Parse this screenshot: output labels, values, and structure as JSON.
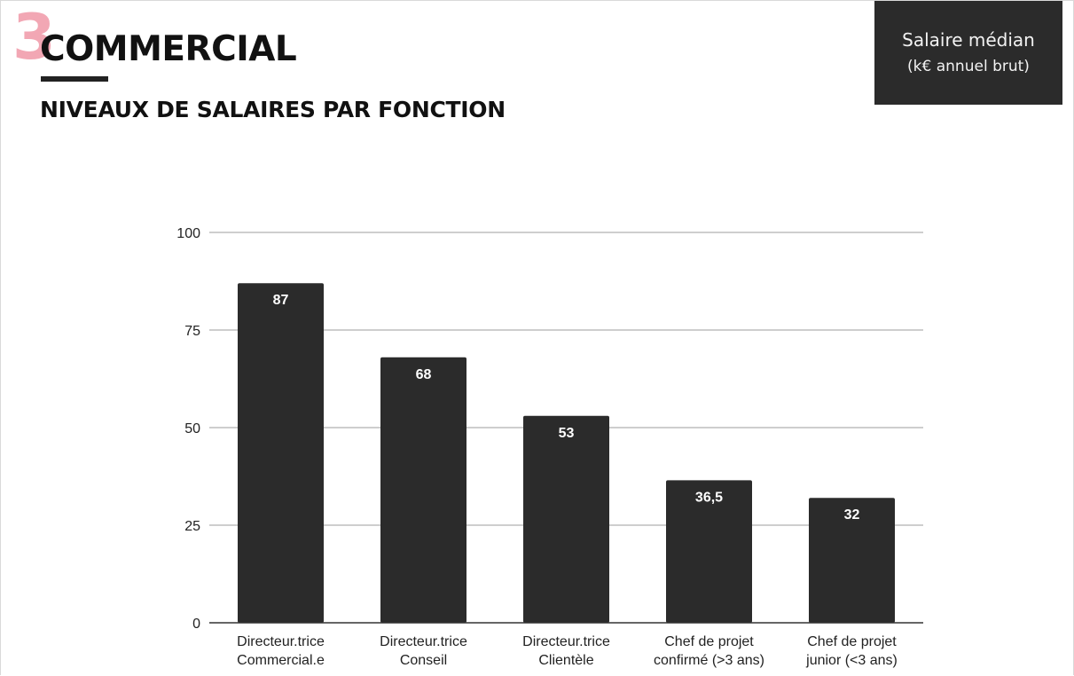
{
  "header": {
    "section_number": "3",
    "section_title": "COMMERCIAL",
    "subtitle": "NIVEAUX DE SALAIRES PAR FONCTION"
  },
  "legend": {
    "label": "Salaire médian",
    "unit": "(k€ annuel brut)"
  },
  "colors": {
    "accent_pink": "#f2a7b4",
    "bar": "#2b2b2b",
    "gridline": "#bdbdbd",
    "axis": "#333333",
    "bar_label": "#ffffff"
  },
  "chart_data": {
    "type": "bar",
    "categories": [
      [
        "Directeur.trice",
        "Commercial.e"
      ],
      [
        "Directeur.trice",
        "Conseil"
      ],
      [
        "Directeur.trice",
        "Clientèle"
      ],
      [
        "Chef de projet",
        "confirmé (>3 ans)"
      ],
      [
        "Chef de projet",
        "junior (<3 ans)"
      ]
    ],
    "values": [
      87,
      68,
      53,
      36.5,
      32
    ],
    "data_labels": [
      "87",
      "68",
      "53",
      "36,5",
      "32"
    ],
    "ylim": [
      0,
      100
    ],
    "yticks": [
      0,
      25,
      50,
      75,
      100
    ],
    "grid": true
  }
}
